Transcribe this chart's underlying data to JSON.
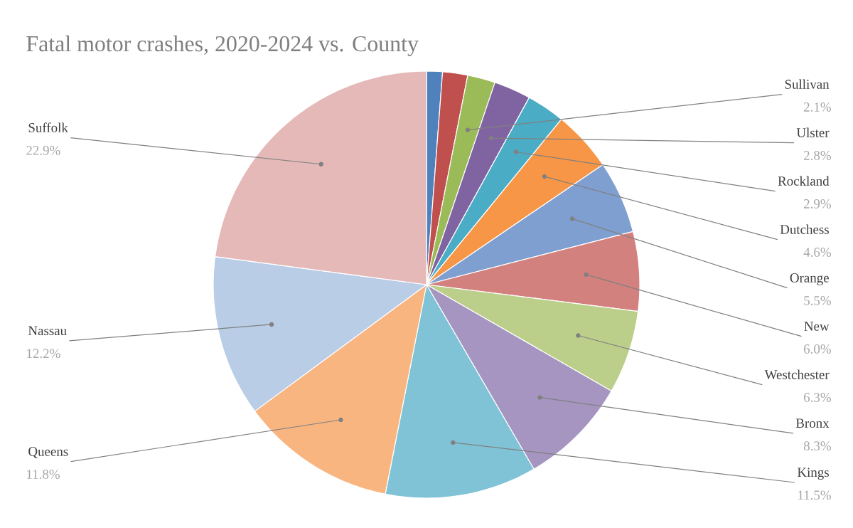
{
  "chart_data": {
    "type": "pie",
    "title": "Fatal motor crashes, 2020-2024 vs. County",
    "categories": [
      null,
      null,
      "Sullivan",
      "Ulster",
      "Rockland",
      "Dutchess",
      "Orange",
      "New",
      "Westchester",
      "Bronx",
      "Kings",
      "Queens",
      "Nassau",
      "Suffolk"
    ],
    "values": [
      1.2,
      1.9,
      2.1,
      2.8,
      2.9,
      4.6,
      5.5,
      6.0,
      6.3,
      8.3,
      11.5,
      11.8,
      12.2,
      22.9
    ],
    "value_labels": [
      null,
      null,
      "2.1%",
      "2.8%",
      "2.9%",
      "4.6%",
      "5.5%",
      "6.0%",
      "6.3%",
      "8.3%",
      "11.5%",
      "11.8%",
      "12.2%",
      "22.9%"
    ],
    "colors": [
      "#4f81bd",
      "#c0504d",
      "#9bbb59",
      "#8064a2",
      "#4bacc6",
      "#f79646",
      "#7f9fd0",
      "#d3817e",
      "#bbcf8a",
      "#a595c0",
      "#80c3d6",
      "#f9b580",
      "#b9cde6",
      "#e4b9b8"
    ]
  }
}
